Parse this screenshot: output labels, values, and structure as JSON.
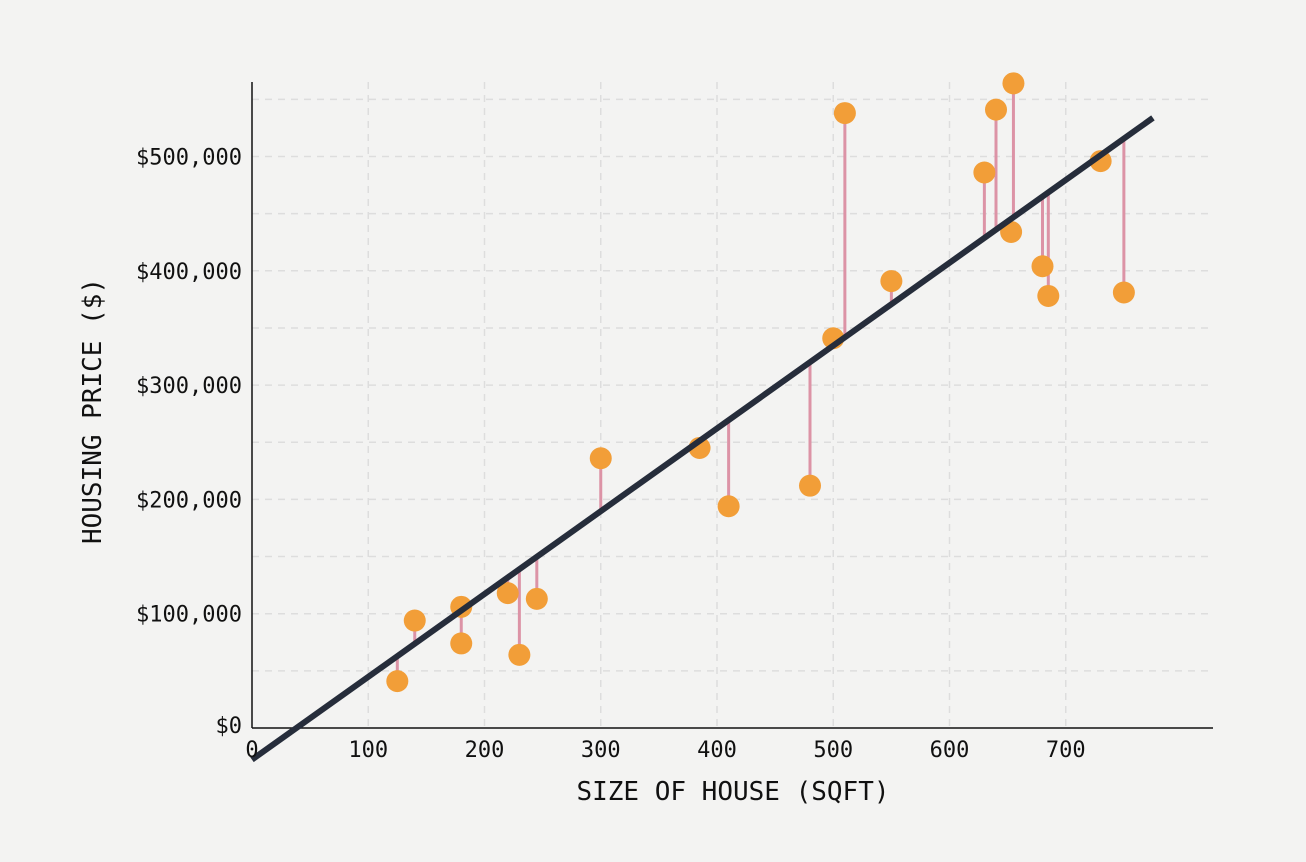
{
  "chart_data": {
    "type": "scatter",
    "title": "",
    "xlabel": "SIZE OF HOUSE (SQFT)",
    "ylabel": "HOUSING PRICE ($)",
    "xlim": [
      0,
      825
    ],
    "ylim": [
      0,
      560000
    ],
    "grid": true,
    "x_ticks": [
      0,
      100,
      200,
      300,
      400,
      500,
      600,
      700
    ],
    "x_tick_labels": [
      "0",
      "100",
      "200",
      "300",
      "400",
      "500",
      "600",
      "700"
    ],
    "y_ticks": [
      0,
      100000,
      200000,
      300000,
      400000,
      500000
    ],
    "y_tick_labels": [
      "$0",
      "$100,000",
      "$200,000",
      "$300,000",
      "$400,000",
      "$500,000"
    ],
    "regression_line": {
      "slope": 724.5,
      "intercept": -27700,
      "x_start": 0,
      "x_end": 775
    },
    "points": [
      {
        "x": 125,
        "y": 41000
      },
      {
        "x": 140,
        "y": 94000
      },
      {
        "x": 180,
        "y": 106000
      },
      {
        "x": 180,
        "y": 74000
      },
      {
        "x": 220,
        "y": 118000
      },
      {
        "x": 230,
        "y": 64000
      },
      {
        "x": 245,
        "y": 113000
      },
      {
        "x": 300,
        "y": 236000
      },
      {
        "x": 385,
        "y": 245000
      },
      {
        "x": 410,
        "y": 194000
      },
      {
        "x": 480,
        "y": 212000
      },
      {
        "x": 500,
        "y": 341000
      },
      {
        "x": 510,
        "y": 538000
      },
      {
        "x": 550,
        "y": 391000
      },
      {
        "x": 630,
        "y": 486000
      },
      {
        "x": 640,
        "y": 541000
      },
      {
        "x": 653,
        "y": 434000
      },
      {
        "x": 655,
        "y": 564000
      },
      {
        "x": 680,
        "y": 404000
      },
      {
        "x": 685,
        "y": 378000
      },
      {
        "x": 730,
        "y": 496000
      },
      {
        "x": 750,
        "y": 381000
      }
    ],
    "colors": {
      "point": "#f29e38",
      "residual": "#dc93a6",
      "line": "#262d3b",
      "grid": "#dddddd",
      "axis": "#111111"
    }
  }
}
